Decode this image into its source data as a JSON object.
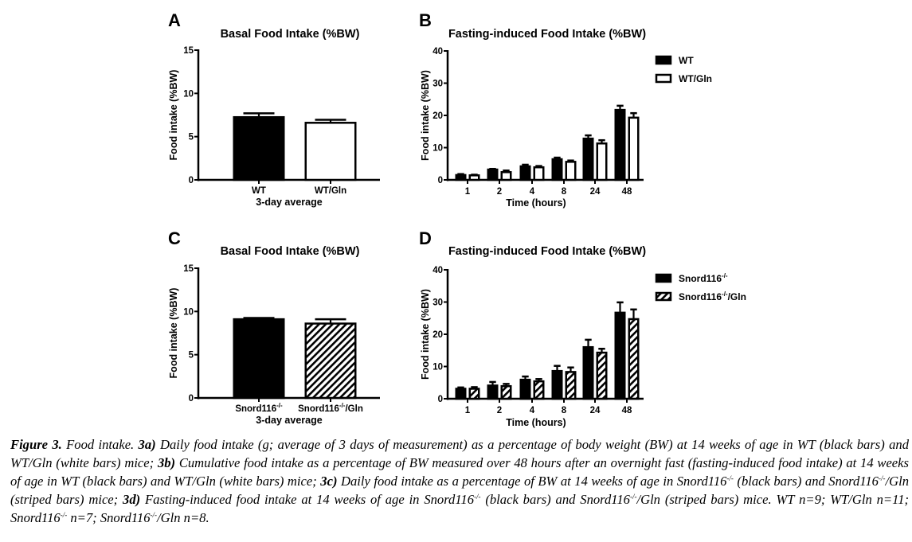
{
  "chart_data": [
    {
      "id": "A",
      "panel_label": "A",
      "type": "bar",
      "title": "Basal Food Intake (%BW)",
      "xlabel": "3-day average",
      "ylabel": "Food intake (%BW)",
      "ylim": [
        0,
        15
      ],
      "yticks": [
        0,
        5,
        10,
        15
      ],
      "categories": [
        "WT",
        "WT/Gln"
      ],
      "category_sups": [
        "",
        ""
      ],
      "category_suffix": [
        "",
        ""
      ],
      "values": [
        7.25,
        6.6
      ],
      "errors": [
        0.45,
        0.35
      ],
      "fills": [
        "solid",
        "white"
      ],
      "grid": false,
      "legend": null
    },
    {
      "id": "B",
      "panel_label": "B",
      "type": "bar",
      "title": "Fasting-induced Food Intake (%BW)",
      "xlabel": "Time (hours)",
      "ylabel": "Food intake (%BW)",
      "ylim": [
        0,
        40
      ],
      "yticks": [
        0,
        10,
        20,
        30,
        40
      ],
      "categories": [
        "1",
        "2",
        "4",
        "8",
        "24",
        "48"
      ],
      "series": [
        {
          "name": "WT",
          "sup": "",
          "suffix": "",
          "fill": "solid",
          "values": [
            1.5,
            3.2,
            4.2,
            6.4,
            12.8,
            21.7
          ],
          "errors": [
            0.3,
            0.2,
            0.5,
            0.5,
            1.0,
            1.3
          ]
        },
        {
          "name": "WT/Gln",
          "sup": "",
          "suffix": "",
          "fill": "white",
          "values": [
            1.4,
            2.4,
            3.9,
            5.6,
            11.3,
            19.3
          ],
          "errors": [
            0.2,
            0.5,
            0.4,
            0.4,
            1.0,
            1.4
          ]
        }
      ],
      "grid": false,
      "legend": "top-right"
    },
    {
      "id": "C",
      "panel_label": "C",
      "type": "bar",
      "title": "Basal Food Intake (%BW)",
      "xlabel": "3-day average",
      "ylabel": "Food intake (%BW)",
      "ylim": [
        0,
        15
      ],
      "yticks": [
        0,
        5,
        10,
        15
      ],
      "categories": [
        "Snord116",
        "Snord116"
      ],
      "category_sups": [
        "-/-",
        "-/-"
      ],
      "category_suffix": [
        "",
        "/Gln"
      ],
      "values": [
        9.1,
        8.6
      ],
      "errors": [
        0.15,
        0.5
      ],
      "fills": [
        "solid",
        "striped"
      ],
      "grid": false,
      "legend": null
    },
    {
      "id": "D",
      "panel_label": "D",
      "type": "bar",
      "title": "Fasting-induced Food Intake (%BW)",
      "xlabel": "Time (hours)",
      "ylabel": "Food intake (%BW)",
      "ylim": [
        0,
        40
      ],
      "yticks": [
        0,
        10,
        20,
        30,
        40
      ],
      "categories": [
        "1",
        "2",
        "4",
        "8",
        "24",
        "48"
      ],
      "series": [
        {
          "name": "Snord116",
          "sup": "-/-",
          "suffix": "",
          "fill": "solid",
          "values": [
            3.1,
            4.1,
            5.9,
            8.6,
            16.0,
            26.7
          ],
          "errors": [
            0.4,
            1.1,
            1.0,
            1.6,
            2.3,
            3.2
          ]
        },
        {
          "name": "Snord116",
          "sup": "-/-",
          "suffix": "/Gln",
          "fill": "striped",
          "values": [
            3.1,
            3.9,
            5.4,
            8.3,
            14.3,
            24.7
          ],
          "errors": [
            0.5,
            0.7,
            0.7,
            1.4,
            1.2,
            3.0
          ]
        }
      ],
      "grid": false,
      "legend": "top-right"
    }
  ],
  "caption": {
    "parts": [
      {
        "t": "Figure 3.",
        "b": true
      },
      {
        "t": " Food intake. "
      },
      {
        "t": "3a)",
        "b": true
      },
      {
        "t": " Daily food intake (g; average of 3 days of measurement) as a percentage of body weight (BW) at 14 weeks of age in WT (black bars) and WT/Gln (white bars) mice; "
      },
      {
        "t": "3b)",
        "b": true
      },
      {
        "t": " Cumulative food intake as a percentage of BW measured over 48 hours after an overnight fast (fasting-induced food intake) at 14 weeks of age in WT (black bars) and WT/Gln (white bars) mice; "
      },
      {
        "t": "3c)",
        "b": true
      },
      {
        "t": " Daily food intake as a percentage of BW at 14 weeks of age in Snord116"
      },
      {
        "t": "-/-",
        "sup": true
      },
      {
        "t": " (black bars) and Snord116"
      },
      {
        "t": "-/-",
        "sup": true
      },
      {
        "t": "/Gln (striped bars) mice; "
      },
      {
        "t": "3d)",
        "b": true
      },
      {
        "t": " Fasting-induced food intake at 14 weeks of age in Snord116"
      },
      {
        "t": "-/-",
        "sup": true
      },
      {
        "t": " (black bars) and Snord116"
      },
      {
        "t": "-/-",
        "sup": true
      },
      {
        "t": "/Gln (striped bars) mice. WT n=9; WT/Gln n=11; Snord116"
      },
      {
        "t": "-/-",
        "sup": true
      },
      {
        "t": " n=7; Snord116"
      },
      {
        "t": "-/-",
        "sup": true
      },
      {
        "t": "/Gln n=8."
      }
    ]
  }
}
